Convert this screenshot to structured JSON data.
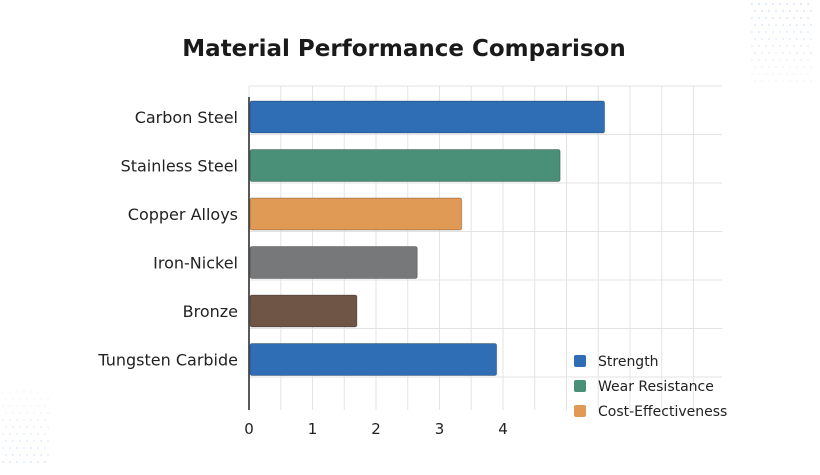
{
  "colors": {
    "strength": "#2f6db5",
    "wear_resistance": "#4a8f78",
    "cost_effectiveness": "#e09a55",
    "gray": "#77787a",
    "brown": "#6e5546",
    "grid": "#e3e3e3",
    "axis": "#222222"
  },
  "chart_data": {
    "type": "bar",
    "orientation": "horizontal",
    "title": "Material Performance Comparison",
    "xlabel": "",
    "ylabel": "",
    "xlim": [
      0,
      7.5
    ],
    "x_ticks": [
      0,
      1,
      2,
      3,
      4
    ],
    "grid": true,
    "legend_position": "bottom-right",
    "categories": [
      "Carbon Steel",
      "Stainless Steel",
      "Copper Alloys",
      "Iron-Nickel",
      "Bronze",
      "Tungsten Carbide"
    ],
    "values": [
      5.6,
      4.9,
      3.35,
      2.65,
      1.7,
      3.9
    ],
    "bar_colors": [
      "#2f6db5",
      "#4a8f78",
      "#e09a55",
      "#77787a",
      "#6e5546",
      "#2f6db5"
    ],
    "legend": [
      {
        "label": "Strength",
        "color": "#2f6db5"
      },
      {
        "label": "Wear Resistance",
        "color": "#4a8f78"
      },
      {
        "label": "Cost-Effectiveness",
        "color": "#e09a55"
      }
    ]
  }
}
